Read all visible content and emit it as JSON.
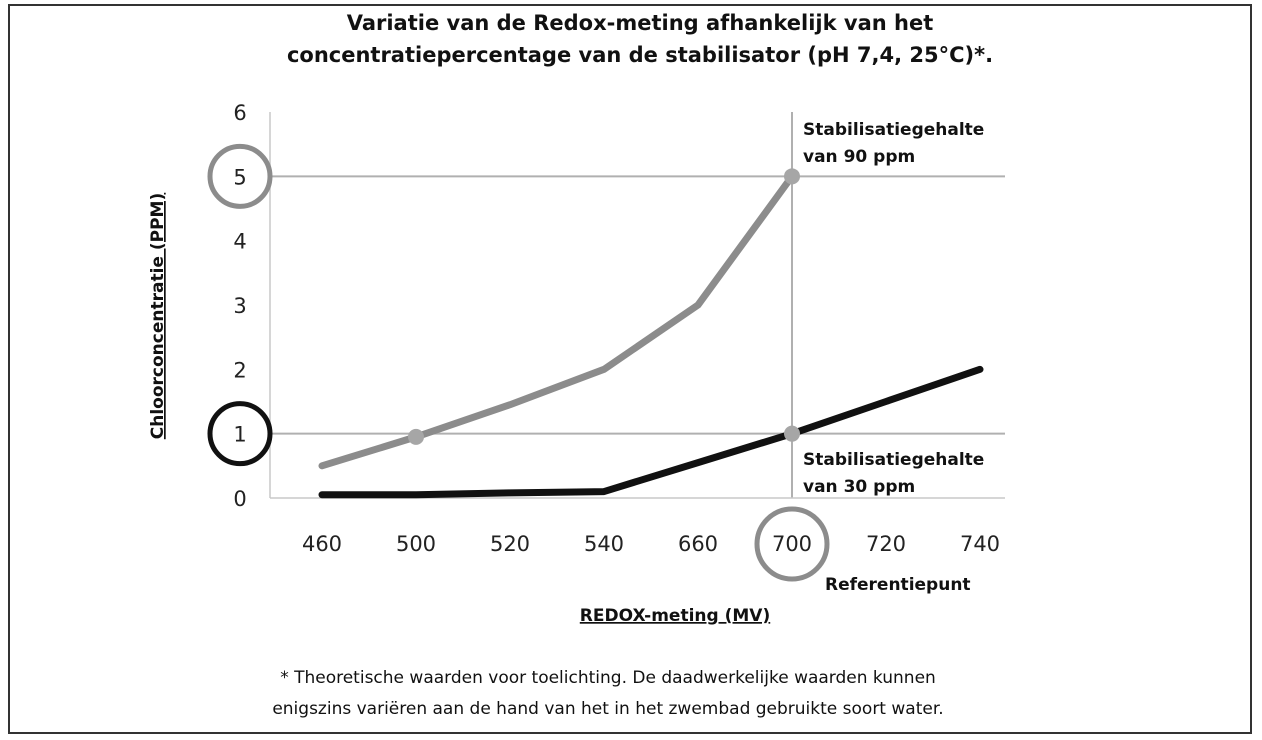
{
  "chart_data": {
    "type": "line",
    "title_lines": [
      "Variatie van de Redox-meting afhankelijk van het",
      "concentratiepercentage van de stabilisator (pH 7,4, 25°C)*."
    ],
    "xlabel": "REDOX-meting (MV)",
    "ylabel": "Chloorconcentratie (PPM)",
    "categories": [
      "460",
      "500",
      "520",
      "540",
      "660",
      "700",
      "720",
      "740"
    ],
    "yticks": [
      "0",
      "1",
      "2",
      "3",
      "4",
      "5",
      "6"
    ],
    "ylim": [
      0,
      6
    ],
    "grid": false,
    "series": [
      {
        "color": "#8c8c8c",
        "values": [
          0.5,
          0.95,
          1.45,
          2.0,
          3.0,
          5.0,
          null,
          null
        ]
      },
      {
        "color": "#111111",
        "values": [
          0.05,
          0.05,
          0.08,
          0.1,
          0.55,
          1.0,
          1.5,
          2.0
        ]
      }
    ],
    "reference_lines": {
      "horizontal": [
        1,
        5
      ],
      "vertical_category": "700",
      "color": "#b0b0b0"
    },
    "highlight_points": [
      {
        "series": 0,
        "category": "500",
        "value": 0.95
      },
      {
        "series": 0,
        "category": "700",
        "value": 5.0
      },
      {
        "series": 1,
        "category": "700",
        "value": 1.0
      }
    ],
    "circled_ticks": [
      {
        "axis": "y",
        "label": "5",
        "color": "#8c8c8c"
      },
      {
        "axis": "y",
        "label": "1",
        "color": "#111111"
      },
      {
        "axis": "x",
        "label": "700",
        "color": "#8c8c8c"
      }
    ],
    "annotations": {
      "upper_lines": [
        "Stabilisatiegehalte",
        "van 90 ppm"
      ],
      "lower_lines": [
        "Stabilisatiegehalte",
        "van 30 ppm"
      ],
      "reference": "Referentiepunt"
    }
  },
  "footnote_lines": [
    "* Theoretische waarden voor toelichting. De daadwerkelijke waarden kunnen",
    "enigszins variëren aan de hand van het in het zwembad gebruikte soort water."
  ]
}
